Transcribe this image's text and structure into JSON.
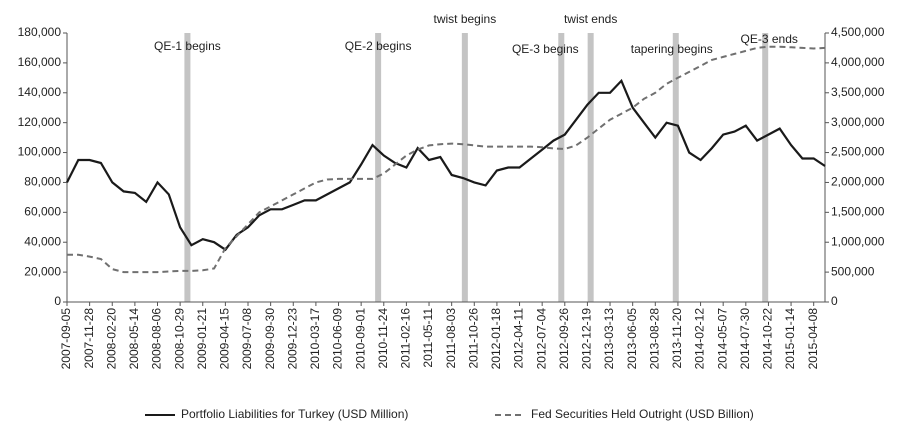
{
  "chart_data": {
    "type": "line",
    "categories": [
      "2007-09-05",
      null,
      "2007-11-28",
      null,
      "2008-02-20",
      null,
      "2008-05-14",
      null,
      "2008-08-06",
      null,
      "2008-10-29",
      null,
      "2009-01-21",
      null,
      "2009-04-15",
      null,
      "2009-07-08",
      null,
      "2009-09-30",
      null,
      "2009-12-23",
      null,
      "2010-03-17",
      null,
      "2010-06-09",
      null,
      "2010-09-01",
      null,
      "2010-11-24",
      null,
      "2011-02-16",
      null,
      "2011-05-11",
      null,
      "2011-08-03",
      null,
      "2011-10-26",
      null,
      "2012-01-18",
      null,
      "2012-04-11",
      null,
      "2012-07-04",
      null,
      "2012-09-26",
      null,
      "2012-12-19",
      null,
      "2013-03-13",
      null,
      "2013-06-05",
      null,
      "2013-08-28",
      null,
      "2013-11-20",
      null,
      "2014-02-12",
      null,
      "2014-05-07",
      null,
      "2014-07-30",
      null,
      "2014-10-22",
      null,
      "2015-01-14",
      null,
      "2015-04-08",
      null
    ],
    "series": [
      {
        "name": "Portfolio Liabilities for Turkey (USD Million)",
        "color": "#1a1a1a",
        "dash": "solid",
        "axis": "y",
        "values": [
          80000,
          95000,
          95000,
          93000,
          80000,
          74000,
          73000,
          67000,
          80000,
          72000,
          50000,
          38000,
          42000,
          40000,
          35000,
          45000,
          50000,
          58000,
          62000,
          62000,
          65000,
          68000,
          68000,
          72000,
          76000,
          80000,
          92000,
          105000,
          98000,
          93000,
          90000,
          103000,
          95000,
          97000,
          85000,
          83000,
          80000,
          78000,
          88000,
          90000,
          90000,
          96000,
          102000,
          108000,
          112000,
          122000,
          132000,
          140000,
          140000,
          148000,
          130000,
          120000,
          110000,
          120000,
          118000,
          100000,
          95000,
          103000,
          112000,
          114000,
          118000,
          108000,
          112000,
          116000,
          105000,
          96000,
          96000,
          91000
        ]
      },
      {
        "name": "Fed Securities Held Outright (USD Billion)",
        "color": "#707070",
        "dash": "dashed",
        "axis": "y2",
        "values": [
          790000,
          790000,
          760000,
          720000,
          550000,
          500000,
          500000,
          500000,
          500000,
          510000,
          520000,
          520000,
          530000,
          560000,
          900000,
          1100000,
          1300000,
          1500000,
          1600000,
          1700000,
          1800000,
          1900000,
          2000000,
          2050000,
          2060000,
          2060000,
          2060000,
          2060000,
          2150000,
          2300000,
          2450000,
          2550000,
          2620000,
          2640000,
          2650000,
          2640000,
          2620000,
          2600000,
          2600000,
          2600000,
          2600000,
          2600000,
          2590000,
          2570000,
          2560000,
          2620000,
          2750000,
          2900000,
          3050000,
          3150000,
          3250000,
          3400000,
          3500000,
          3650000,
          3750000,
          3850000,
          3950000,
          4050000,
          4100000,
          4150000,
          4200000,
          4250000,
          4270000,
          4270000,
          4260000,
          4250000,
          4240000,
          4250000
        ]
      }
    ],
    "ylim": [
      0,
      180000
    ],
    "yticks": [
      0,
      {
        "value": 20000,
        "label": "20,000"
      },
      {
        "value": 40000,
        "label": "40,000"
      },
      {
        "value": 60000,
        "label": "60,000"
      },
      {
        "value": 80000,
        "label": "80,000"
      },
      {
        "value": 100000,
        "label": "100,000"
      },
      {
        "value": 120000,
        "label": "120,000"
      },
      {
        "value": 140000,
        "label": "140,000"
      },
      {
        "value": 160000,
        "label": "160,000"
      },
      {
        "value": 180000,
        "label": "180,000"
      }
    ],
    "y2lim": [
      0,
      4500000
    ],
    "y2ticks": [
      0,
      {
        "value": 500000,
        "label": "500,000"
      },
      {
        "value": 1000000,
        "label": "1,000,000"
      },
      {
        "value": 1500000,
        "label": "1,500,000"
      },
      {
        "value": 2000000,
        "label": "2,000,000"
      },
      {
        "value": 2500000,
        "label": "2,500,000"
      },
      {
        "value": 3000000,
        "label": "3,000,000"
      },
      {
        "value": 3500000,
        "label": "3,500,000"
      },
      {
        "value": 4000000,
        "label": "4,000,000"
      },
      {
        "value": 4500000,
        "label": "4,500,000"
      }
    ],
    "annotations": [
      {
        "label": "QE-1 begins",
        "x": "2008-11-25"
      },
      {
        "label": "QE-2 begins",
        "x": "2010-11-03"
      },
      {
        "label": "twist begins",
        "x": "2011-09-21"
      },
      {
        "label": "QE-3 begins",
        "x": "2012-09-13"
      },
      {
        "label": "twist ends",
        "x": "2012-12-31"
      },
      {
        "label": "tapering begins",
        "x": "2013-11-12"
      },
      {
        "label": "QE-3 ends",
        "x": "2014-10-10"
      }
    ],
    "annotation_color": "#c4c4c4",
    "legend": "bottom",
    "grid": false
  }
}
